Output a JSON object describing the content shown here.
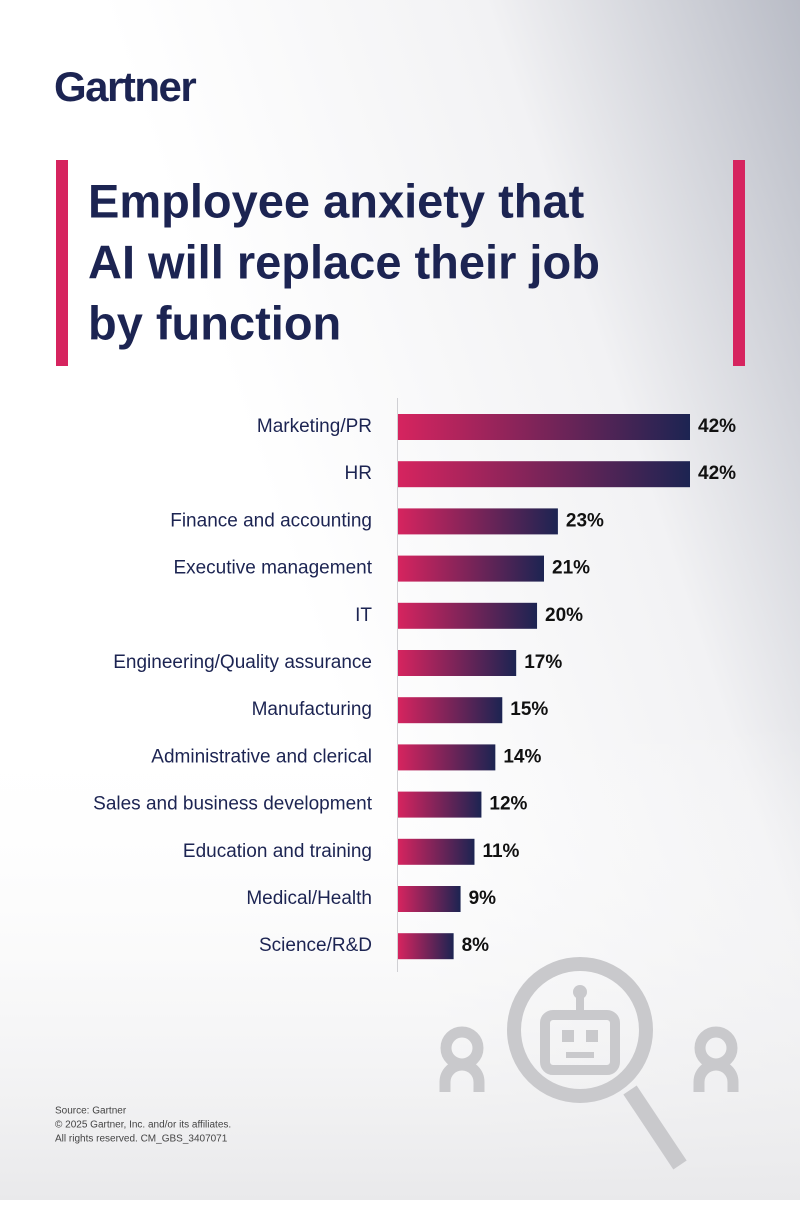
{
  "logo": "Gartner",
  "chart_data": {
    "type": "bar",
    "orientation": "horizontal",
    "title": [
      "Employee anxiety that",
      "AI will replace their job",
      "by function"
    ],
    "categories": [
      "Marketing/PR",
      "HR",
      "Finance and accounting",
      "Executive management",
      "IT",
      "Engineering/Quality assurance",
      "Manufacturing",
      "Administrative and clerical",
      "Sales and business development",
      "Education and training",
      "Medical/Health",
      "Science/R&D"
    ],
    "values": [
      42,
      42,
      23,
      21,
      20,
      17,
      15,
      14,
      12,
      11,
      9,
      8
    ],
    "value_labels": [
      "42%",
      "42%",
      "23%",
      "21%",
      "20%",
      "17%",
      "15%",
      "14%",
      "12%",
      "11%",
      "9%",
      "8%"
    ],
    "colors": [
      "#d6245f",
      "#1c2452"
    ]
  },
  "footer": [
    "Source: Gartner",
    "© 2025 Gartner, Inc. and/or its affiliates.",
    "All rights reserved. CM_GBS_3407071"
  ]
}
